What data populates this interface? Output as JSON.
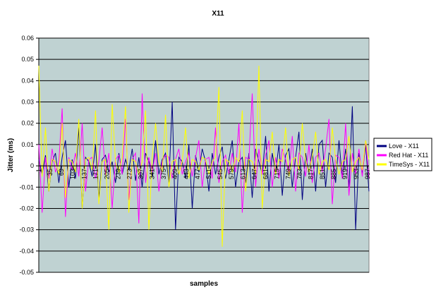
{
  "chart_data": {
    "type": "line",
    "title": "X11",
    "x_label": "samples",
    "y_label": "Jitter (ms)",
    "ylim": [
      -0.05,
      0.06
    ],
    "yticks": [
      -0.05,
      -0.04,
      -0.03,
      -0.02,
      -0.01,
      0,
      0.01,
      0.02,
      0.03,
      0.04,
      0.05,
      0.06
    ],
    "xlim": [
      1,
      991
    ],
    "xticks": [
      1,
      35,
      69,
      103,
      137,
      171,
      205,
      239,
      273,
      307,
      341,
      375,
      409,
      443,
      477,
      511,
      545,
      579,
      613,
      647,
      681,
      715,
      749,
      783,
      817,
      851,
      885,
      919,
      953,
      987
    ],
    "grid": true,
    "legend": "right",
    "background": "#bfd2d2",
    "x": [
      1,
      11,
      21,
      31,
      41,
      51,
      61,
      71,
      81,
      91,
      101,
      111,
      121,
      131,
      141,
      151,
      161,
      171,
      181,
      191,
      201,
      211,
      221,
      231,
      241,
      251,
      261,
      271,
      281,
      291,
      301,
      311,
      321,
      331,
      341,
      351,
      361,
      371,
      381,
      391,
      401,
      411,
      421,
      431,
      441,
      451,
      461,
      471,
      481,
      491,
      501,
      511,
      521,
      531,
      541,
      551,
      561,
      571,
      581,
      591,
      601,
      611,
      621,
      631,
      641,
      651,
      661,
      671,
      681,
      691,
      701,
      711,
      721,
      731,
      741,
      751,
      761,
      771,
      781,
      791,
      801,
      811,
      821,
      831,
      841,
      851,
      861,
      871,
      881,
      891,
      901,
      911,
      921,
      931,
      941,
      951,
      961,
      971,
      981,
      991
    ],
    "series": [
      {
        "name": "Love - X11",
        "color": "#000080",
        "values": [
          0.003,
          -0.004,
          0.005,
          -0.012,
          0.002,
          0.006,
          -0.008,
          0.004,
          0.012,
          -0.01,
          0.003,
          -0.006,
          0.018,
          -0.02,
          0.004,
          0.002,
          -0.005,
          0.01,
          -0.015,
          0.003,
          0.005,
          -0.003,
          0.002,
          -0.008,
          0.006,
          -0.004,
          0.003,
          -0.002,
          0.008,
          -0.007,
          0.004,
          -0.01,
          0.006,
          0.002,
          -0.005,
          0.012,
          -0.004,
          0.003,
          0.006,
          -0.008,
          0.03,
          -0.03,
          0.004,
          0.002,
          -0.006,
          0.01,
          -0.02,
          0.005,
          -0.003,
          0.008,
          0.002,
          -0.012,
          0.006,
          -0.004,
          0.004,
          0.009,
          -0.006,
          0.003,
          0.012,
          -0.01,
          0.002,
          0.004,
          -0.008,
          0.006,
          -0.015,
          0.008,
          0.002,
          -0.004,
          0.014,
          -0.012,
          0.006,
          -0.003,
          0.01,
          -0.014,
          0.005,
          0.008,
          -0.01,
          0.004,
          0.016,
          -0.016,
          0.006,
          -0.004,
          0.008,
          -0.012,
          0.01,
          0.012,
          -0.01,
          0.006,
          0.004,
          -0.008,
          0.012,
          -0.006,
          0.008,
          -0.01,
          0.028,
          -0.03,
          0.006,
          -0.004,
          0.01,
          -0.012
        ]
      },
      {
        "name": "Red Hat - X11",
        "color": "#ff00ff",
        "values": [
          0.01,
          -0.022,
          0.004,
          -0.006,
          0.008,
          -0.003,
          0.002,
          0.027,
          -0.024,
          0.004,
          -0.002,
          0.006,
          -0.005,
          0.02,
          -0.012,
          0.003,
          0.004,
          -0.006,
          0.002,
          0.018,
          -0.004,
          0.006,
          -0.02,
          0.003,
          0.005,
          -0.004,
          0.022,
          -0.016,
          0.003,
          0.006,
          -0.027,
          0.034,
          -0.008,
          0.004,
          -0.003,
          0.006,
          -0.012,
          0.002,
          0.005,
          0.004,
          -0.006,
          0.003,
          0.008,
          -0.004,
          0.002,
          0.006,
          -0.005,
          0.004,
          0.012,
          -0.01,
          0.003,
          0.004,
          -0.006,
          0.018,
          -0.008,
          0.002,
          0.005,
          -0.004,
          0.006,
          -0.003,
          0.02,
          -0.022,
          0.004,
          0.003,
          0.034,
          -0.01,
          0.008,
          -0.004,
          0.005,
          0.012,
          -0.01,
          0.004,
          -0.006,
          0.008,
          0.003,
          -0.004,
          0.014,
          -0.012,
          0.006,
          0.004,
          -0.005,
          0.01,
          -0.008,
          0.004,
          0.006,
          -0.003,
          0.008,
          0.022,
          -0.018,
          0.005,
          0.004,
          -0.006,
          0.02,
          -0.014,
          0.006,
          -0.004,
          0.008,
          -0.005,
          0.012,
          -0.006
        ]
      },
      {
        "name": "TimeSys - X11",
        "color": "#ffff00",
        "values": [
          0.047,
          -0.005,
          0.018,
          -0.012,
          0.003,
          0.002,
          -0.004,
          0.02,
          -0.015,
          0.003,
          0.002,
          -0.003,
          0.022,
          -0.02,
          0.003,
          0.004,
          -0.002,
          0.026,
          -0.018,
          0.002,
          0.003,
          -0.03,
          0.029,
          0.002,
          -0.003,
          0.004,
          0.028,
          -0.022,
          0.003,
          0.002,
          -0.004,
          0.002,
          0.026,
          -0.03,
          0.004,
          0.02,
          0.002,
          -0.003,
          0.024,
          -0.01,
          0.002,
          0.003,
          -0.004,
          0.002,
          0.018,
          -0.006,
          0.003,
          0.002,
          -0.002,
          0.004,
          0.003,
          -0.004,
          0.002,
          0.004,
          0.037,
          -0.038,
          0.003,
          0.002,
          -0.003,
          0.004,
          0.002,
          0.026,
          -0.012,
          0.003,
          0.002,
          -0.004,
          0.047,
          -0.02,
          0.003,
          0.002,
          0.016,
          -0.004,
          0.003,
          0.002,
          0.018,
          -0.005,
          0.003,
          0.004,
          -0.002,
          0.02,
          0.002,
          -0.003,
          0.004,
          0.016,
          -0.004,
          0.002,
          0.003,
          -0.002,
          0.018,
          0.003,
          -0.004,
          0.002,
          0.003,
          0.014,
          -0.003,
          0.002,
          0.004,
          -0.002,
          0.012,
          0.003
        ]
      }
    ]
  }
}
